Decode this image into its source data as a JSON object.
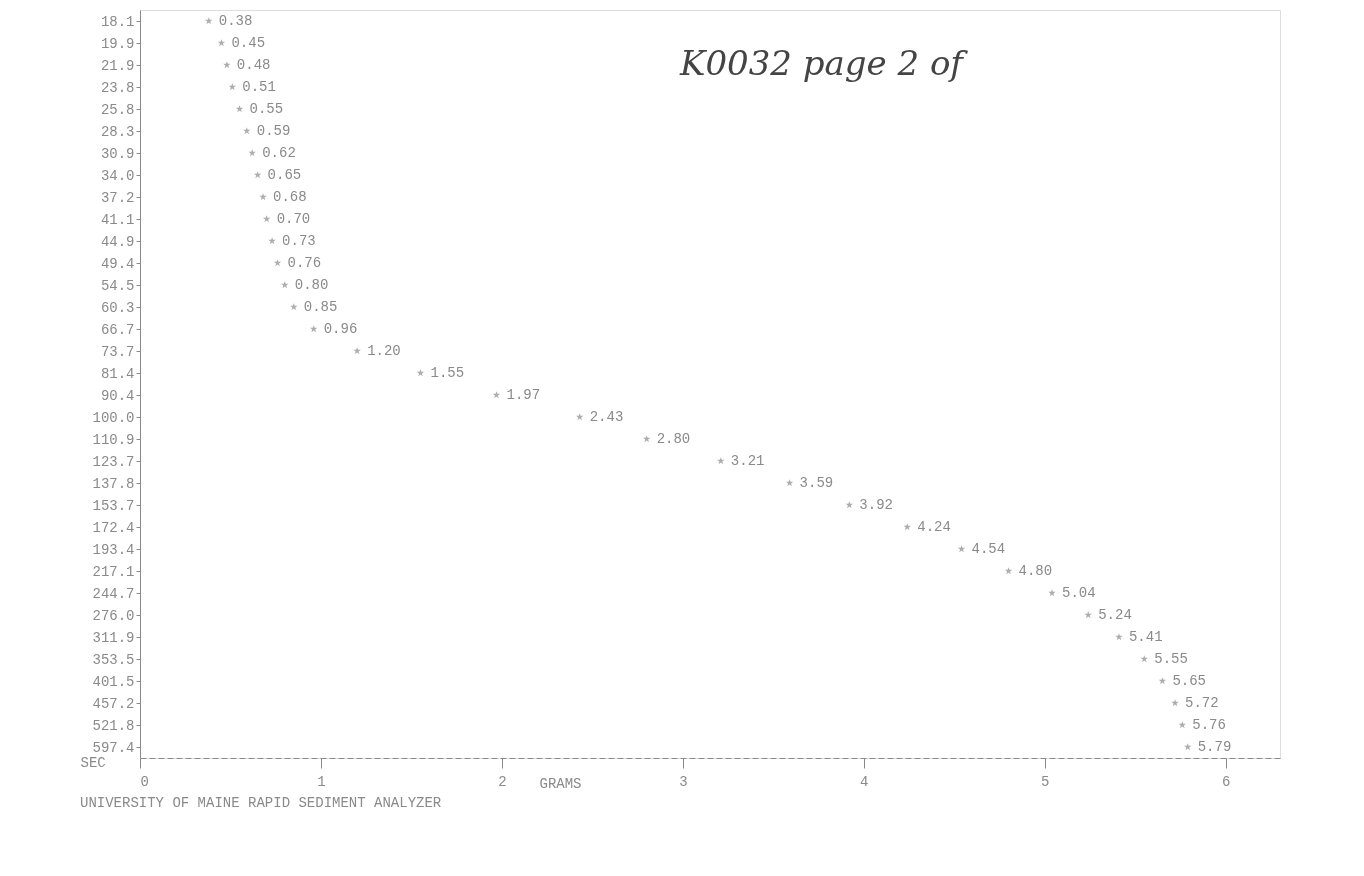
{
  "chart_data": {
    "type": "scatter",
    "orientation": "horizontal",
    "xlabel": "GRAMS",
    "ylabel": "SEC",
    "categories": [
      "18.1",
      "19.9",
      "21.9",
      "23.8",
      "25.8",
      "28.3",
      "30.9",
      "34.0",
      "37.2",
      "41.1",
      "44.9",
      "49.4",
      "54.5",
      "60.3",
      "66.7",
      "73.7",
      "81.4",
      "90.4",
      "100.0",
      "110.9",
      "123.7",
      "137.8",
      "153.7",
      "172.4",
      "193.4",
      "217.1",
      "244.7",
      "276.0",
      "311.9",
      "353.5",
      "401.5",
      "457.2",
      "521.8",
      "597.4"
    ],
    "series": [
      {
        "color": "#8a8a8a",
        "values": [
          0.38,
          0.45,
          0.48,
          0.51,
          0.55,
          0.59,
          0.62,
          0.65,
          0.68,
          0.7,
          0.73,
          0.76,
          0.8,
          0.85,
          0.96,
          1.2,
          1.55,
          1.97,
          2.43,
          2.8,
          3.21,
          3.59,
          3.92,
          4.24,
          4.54,
          4.8,
          5.04,
          5.24,
          5.41,
          5.55,
          5.65,
          5.72,
          5.76,
          5.79
        ],
        "value_labels": [
          "0.38",
          "0.45",
          "0.48",
          "0.51",
          "0.55",
          "0.59",
          "0.62",
          "0.65",
          "0.68",
          "0.70",
          "0.73",
          "0.76",
          "0.80",
          "0.85",
          "0.96",
          "1.20",
          "1.55",
          "1.97",
          "2.43",
          "2.80",
          "3.21",
          "3.59",
          "3.92",
          "4.24",
          "4.54",
          "4.80",
          "5.04",
          "5.24",
          "5.41",
          "5.55",
          "5.65",
          "5.72",
          "5.76",
          "5.79"
        ]
      }
    ],
    "xlim": [
      0,
      6.3
    ],
    "xticks": [
      0,
      1,
      2,
      3,
      4,
      5,
      6
    ],
    "marker": "star",
    "grid": false,
    "annotations": [
      "K0032 page 2 of",
      "UNIVERSITY OF MAINE RAPID SEDIMENT ANALYZER"
    ]
  }
}
